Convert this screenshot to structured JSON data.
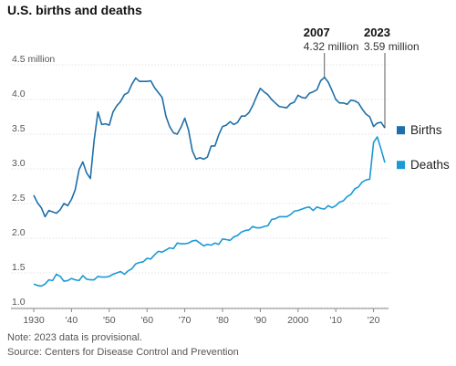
{
  "title": "U.S. births and deaths",
  "note": "Note: 2023 data is provisional.",
  "source": "Source: Centers for Disease Control and Prevention",
  "chart_data": {
    "type": "line",
    "title": "U.S. births and deaths",
    "ylabel": "",
    "y_unit_label": "million",
    "ylim": [
      1.0,
      4.5
    ],
    "xlim": [
      1930,
      2023
    ],
    "y_ticks": [
      1.0,
      1.5,
      2.0,
      2.5,
      3.0,
      3.5,
      4.0,
      4.5
    ],
    "x_ticks": [
      1930,
      1940,
      1950,
      1960,
      1970,
      1980,
      1990,
      2000,
      2010,
      2020
    ],
    "x_tick_labels": [
      "1930",
      "'40",
      "'50",
      "'60",
      "'70",
      "'80",
      "'90",
      "2000",
      "'10",
      "'20"
    ],
    "grid": "horizontal",
    "legend_position": "right",
    "series": [
      {
        "name": "Births",
        "color": "#1f6fa8",
        "x": [
          1930,
          1931,
          1932,
          1933,
          1934,
          1935,
          1936,
          1937,
          1938,
          1939,
          1940,
          1941,
          1942,
          1943,
          1944,
          1945,
          1946,
          1947,
          1948,
          1949,
          1950,
          1951,
          1952,
          1953,
          1954,
          1955,
          1956,
          1957,
          1958,
          1959,
          1960,
          1961,
          1962,
          1963,
          1964,
          1965,
          1966,
          1967,
          1968,
          1969,
          1970,
          1971,
          1972,
          1973,
          1974,
          1975,
          1976,
          1977,
          1978,
          1979,
          1980,
          1981,
          1982,
          1983,
          1984,
          1985,
          1986,
          1987,
          1988,
          1989,
          1990,
          1991,
          1992,
          1993,
          1994,
          1995,
          1996,
          1997,
          1998,
          1999,
          2000,
          2001,
          2002,
          2003,
          2004,
          2005,
          2006,
          2007,
          2008,
          2009,
          2010,
          2011,
          2012,
          2013,
          2014,
          2015,
          2016,
          2017,
          2018,
          2019,
          2020,
          2021,
          2022,
          2023
        ],
        "values": [
          2.62,
          2.51,
          2.44,
          2.31,
          2.4,
          2.38,
          2.36,
          2.41,
          2.5,
          2.47,
          2.56,
          2.7,
          2.99,
          3.1,
          2.94,
          2.86,
          3.41,
          3.82,
          3.64,
          3.65,
          3.63,
          3.82,
          3.91,
          3.97,
          4.07,
          4.1,
          4.22,
          4.31,
          4.26,
          4.26,
          4.26,
          4.27,
          4.17,
          4.1,
          4.03,
          3.76,
          3.61,
          3.52,
          3.5,
          3.6,
          3.73,
          3.56,
          3.26,
          3.14,
          3.16,
          3.14,
          3.17,
          3.33,
          3.33,
          3.49,
          3.61,
          3.63,
          3.68,
          3.64,
          3.67,
          3.76,
          3.76,
          3.81,
          3.91,
          4.04,
          4.16,
          4.11,
          4.07,
          4.0,
          3.95,
          3.9,
          3.89,
          3.88,
          3.94,
          3.96,
          4.06,
          4.03,
          4.02,
          4.09,
          4.11,
          4.14,
          4.27,
          4.32,
          4.25,
          4.13,
          4.0,
          3.95,
          3.95,
          3.93,
          3.99,
          3.98,
          3.95,
          3.86,
          3.79,
          3.75,
          3.61,
          3.66,
          3.67,
          3.59
        ]
      },
      {
        "name": "Deaths",
        "color": "#1a9ad6",
        "x": [
          1930,
          1931,
          1932,
          1933,
          1934,
          1935,
          1936,
          1937,
          1938,
          1939,
          1940,
          1941,
          1942,
          1943,
          1944,
          1945,
          1946,
          1947,
          1948,
          1949,
          1950,
          1951,
          1952,
          1953,
          1954,
          1955,
          1956,
          1957,
          1958,
          1959,
          1960,
          1961,
          1962,
          1963,
          1964,
          1965,
          1966,
          1967,
          1968,
          1969,
          1970,
          1971,
          1972,
          1973,
          1974,
          1975,
          1976,
          1977,
          1978,
          1979,
          1980,
          1981,
          1982,
          1983,
          1984,
          1985,
          1986,
          1987,
          1988,
          1989,
          1990,
          1991,
          1992,
          1993,
          1994,
          1995,
          1996,
          1997,
          1998,
          1999,
          2000,
          2001,
          2002,
          2003,
          2004,
          2005,
          2006,
          2007,
          2008,
          2009,
          2010,
          2011,
          2012,
          2013,
          2014,
          2015,
          2016,
          2017,
          2018,
          2019,
          2020,
          2021,
          2022,
          2023
        ],
        "values": [
          1.34,
          1.32,
          1.31,
          1.34,
          1.4,
          1.39,
          1.48,
          1.45,
          1.38,
          1.39,
          1.42,
          1.4,
          1.39,
          1.46,
          1.41,
          1.4,
          1.4,
          1.45,
          1.44,
          1.44,
          1.45,
          1.48,
          1.5,
          1.52,
          1.48,
          1.53,
          1.56,
          1.63,
          1.65,
          1.66,
          1.71,
          1.7,
          1.76,
          1.81,
          1.8,
          1.83,
          1.86,
          1.85,
          1.93,
          1.92,
          1.92,
          1.93,
          1.96,
          1.97,
          1.93,
          1.89,
          1.91,
          1.9,
          1.93,
          1.91,
          1.99,
          1.98,
          1.97,
          2.02,
          2.04,
          2.09,
          2.11,
          2.12,
          2.17,
          2.15,
          2.15,
          2.17,
          2.18,
          2.27,
          2.28,
          2.31,
          2.31,
          2.31,
          2.34,
          2.39,
          2.4,
          2.42,
          2.44,
          2.45,
          2.4,
          2.45,
          2.43,
          2.42,
          2.47,
          2.44,
          2.47,
          2.52,
          2.54,
          2.6,
          2.63,
          2.71,
          2.74,
          2.81,
          2.84,
          2.85,
          3.38,
          3.46,
          3.28,
          3.09
        ]
      }
    ],
    "annotations": [
      {
        "year_label": "2007",
        "value_label": "4.32 million",
        "x": 2007,
        "y": 4.32
      },
      {
        "year_label": "2023",
        "value_label": "3.59 million",
        "x": 2023,
        "y": 3.59
      }
    ]
  }
}
